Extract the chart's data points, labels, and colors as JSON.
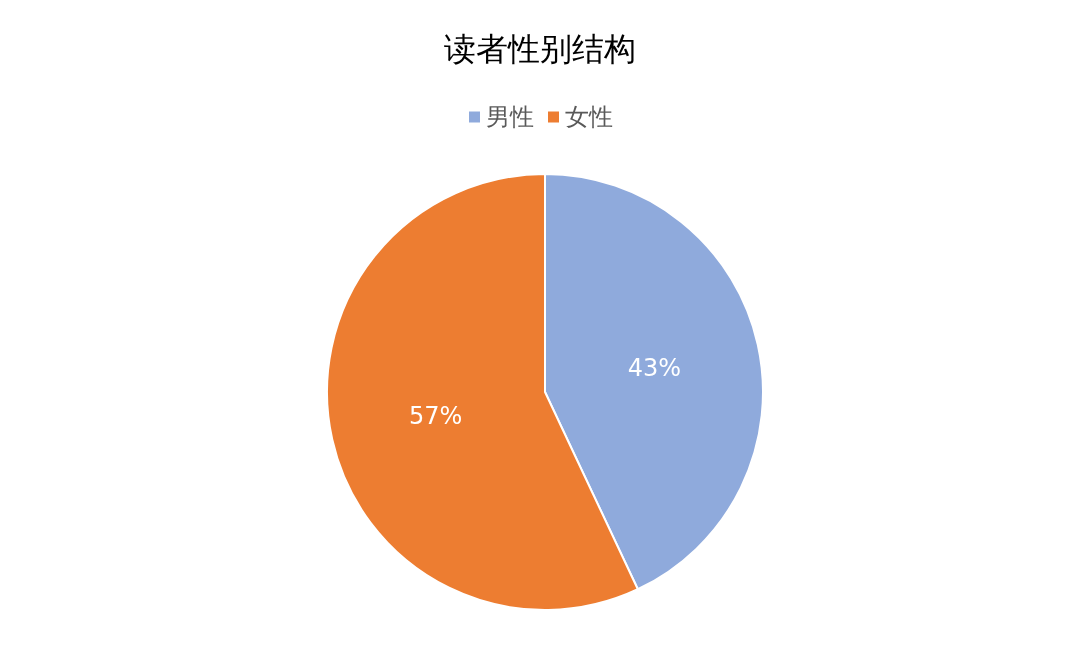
{
  "chart_data": {
    "type": "pie",
    "title": "读者性别结构",
    "categories": [
      "男性",
      "女性"
    ],
    "values": [
      43,
      57
    ],
    "colors": [
      "#8faadc",
      "#ed7d31"
    ],
    "value_labels": [
      "43%",
      "57%"
    ],
    "legend": "top"
  }
}
